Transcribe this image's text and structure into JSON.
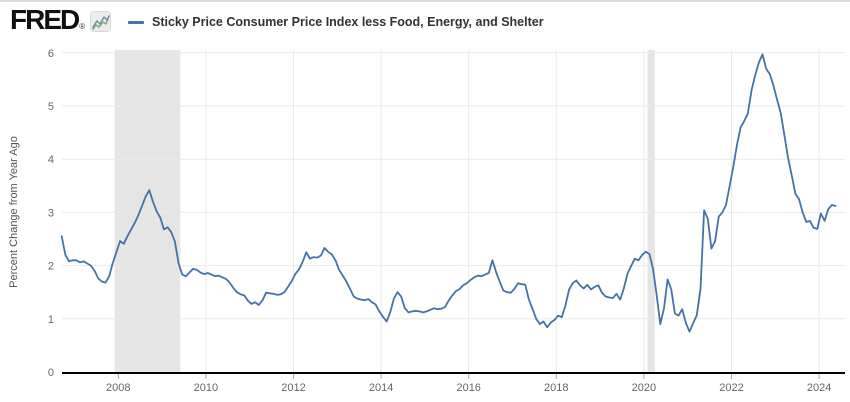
{
  "header": {
    "logo_text": "FRED",
    "logo_registered": "®",
    "legend": {
      "label": "Sticky Price Consumer Price Index less Food, Energy, and Shelter",
      "marker_color": "#4572a7"
    }
  },
  "colors": {
    "line": "#4572a7",
    "recession": "#e5e5e5",
    "grid": "#e9e9e9",
    "axis": "#000000",
    "tick": "#aaaaaa",
    "tick_label": "#666666",
    "axis_title": "#555555",
    "logo_icon_blue": "#6b8fb3",
    "logo_icon_green": "#86a873"
  },
  "chart_data": {
    "type": "line",
    "title": "",
    "ylabel": "Percent Change from Year Ago",
    "xlabel": "",
    "ylim": [
      0,
      6
    ],
    "yticks": [
      0,
      1,
      2,
      3,
      4,
      5,
      6
    ],
    "xticks": [
      2008,
      2010,
      2012,
      2014,
      2016,
      2018,
      2020,
      2022,
      2024
    ],
    "grid": true,
    "legend_position": "top-left",
    "recession_shading": [
      {
        "start": "2007-12",
        "end": "2009-06"
      },
      {
        "start": "2020-02",
        "end": "2020-04"
      }
    ],
    "series": [
      {
        "name": "Sticky Price Consumer Price Index less Food, Energy, and Shelter",
        "color": "#4572a7",
        "points": [
          [
            "2006-09",
            2.55
          ],
          [
            "2006-10",
            2.2
          ],
          [
            "2006-11",
            2.08
          ],
          [
            "2006-12",
            2.1
          ],
          [
            "2007-01",
            2.1
          ],
          [
            "2007-02",
            2.06
          ],
          [
            "2007-03",
            2.08
          ],
          [
            "2007-04",
            2.04
          ],
          [
            "2007-05",
            2.0
          ],
          [
            "2007-06",
            1.9
          ],
          [
            "2007-07",
            1.76
          ],
          [
            "2007-08",
            1.7
          ],
          [
            "2007-09",
            1.68
          ],
          [
            "2007-10",
            1.8
          ],
          [
            "2007-11",
            2.05
          ],
          [
            "2007-12",
            2.26
          ],
          [
            "2008-01",
            2.46
          ],
          [
            "2008-02",
            2.41
          ],
          [
            "2008-03",
            2.55
          ],
          [
            "2008-04",
            2.68
          ],
          [
            "2008-05",
            2.8
          ],
          [
            "2008-06",
            2.95
          ],
          [
            "2008-07",
            3.12
          ],
          [
            "2008-08",
            3.3
          ],
          [
            "2008-09",
            3.42
          ],
          [
            "2008-10",
            3.2
          ],
          [
            "2008-11",
            3.02
          ],
          [
            "2008-12",
            2.9
          ],
          [
            "2009-01",
            2.68
          ],
          [
            "2009-02",
            2.72
          ],
          [
            "2009-03",
            2.63
          ],
          [
            "2009-04",
            2.45
          ],
          [
            "2009-05",
            2.05
          ],
          [
            "2009-06",
            1.83
          ],
          [
            "2009-07",
            1.8
          ],
          [
            "2009-08",
            1.87
          ],
          [
            "2009-09",
            1.94
          ],
          [
            "2009-10",
            1.92
          ],
          [
            "2009-11",
            1.87
          ],
          [
            "2009-12",
            1.84
          ],
          [
            "2010-01",
            1.86
          ],
          [
            "2010-02",
            1.83
          ],
          [
            "2010-03",
            1.8
          ],
          [
            "2010-04",
            1.81
          ],
          [
            "2010-05",
            1.78
          ],
          [
            "2010-06",
            1.75
          ],
          [
            "2010-07",
            1.68
          ],
          [
            "2010-08",
            1.58
          ],
          [
            "2010-09",
            1.5
          ],
          [
            "2010-10",
            1.46
          ],
          [
            "2010-11",
            1.44
          ],
          [
            "2010-12",
            1.34
          ],
          [
            "2011-01",
            1.28
          ],
          [
            "2011-02",
            1.31
          ],
          [
            "2011-03",
            1.26
          ],
          [
            "2011-04",
            1.35
          ],
          [
            "2011-05",
            1.49
          ],
          [
            "2011-06",
            1.48
          ],
          [
            "2011-07",
            1.47
          ],
          [
            "2011-08",
            1.45
          ],
          [
            "2011-09",
            1.46
          ],
          [
            "2011-10",
            1.5
          ],
          [
            "2011-11",
            1.6
          ],
          [
            "2011-12",
            1.71
          ],
          [
            "2012-01",
            1.84
          ],
          [
            "2012-02",
            1.93
          ],
          [
            "2012-03",
            2.07
          ],
          [
            "2012-04",
            2.25
          ],
          [
            "2012-05",
            2.13
          ],
          [
            "2012-06",
            2.16
          ],
          [
            "2012-07",
            2.15
          ],
          [
            "2012-08",
            2.19
          ],
          [
            "2012-09",
            2.33
          ],
          [
            "2012-10",
            2.26
          ],
          [
            "2012-11",
            2.21
          ],
          [
            "2012-12",
            2.1
          ],
          [
            "2013-01",
            1.92
          ],
          [
            "2013-02",
            1.81
          ],
          [
            "2013-03",
            1.7
          ],
          [
            "2013-04",
            1.56
          ],
          [
            "2013-05",
            1.42
          ],
          [
            "2013-06",
            1.38
          ],
          [
            "2013-07",
            1.36
          ],
          [
            "2013-08",
            1.35
          ],
          [
            "2013-09",
            1.37
          ],
          [
            "2013-10",
            1.31
          ],
          [
            "2013-11",
            1.27
          ],
          [
            "2013-12",
            1.14
          ],
          [
            "2014-01",
            1.04
          ],
          [
            "2014-02",
            0.95
          ],
          [
            "2014-03",
            1.12
          ],
          [
            "2014-04",
            1.38
          ],
          [
            "2014-05",
            1.5
          ],
          [
            "2014-06",
            1.42
          ],
          [
            "2014-07",
            1.2
          ],
          [
            "2014-08",
            1.12
          ],
          [
            "2014-09",
            1.14
          ],
          [
            "2014-10",
            1.15
          ],
          [
            "2014-11",
            1.14
          ],
          [
            "2014-12",
            1.12
          ],
          [
            "2015-01",
            1.14
          ],
          [
            "2015-02",
            1.17
          ],
          [
            "2015-03",
            1.2
          ],
          [
            "2015-04",
            1.18
          ],
          [
            "2015-05",
            1.19
          ],
          [
            "2015-06",
            1.22
          ],
          [
            "2015-07",
            1.34
          ],
          [
            "2015-08",
            1.44
          ],
          [
            "2015-09",
            1.52
          ],
          [
            "2015-10",
            1.56
          ],
          [
            "2015-11",
            1.63
          ],
          [
            "2015-12",
            1.67
          ],
          [
            "2016-01",
            1.73
          ],
          [
            "2016-02",
            1.78
          ],
          [
            "2016-03",
            1.81
          ],
          [
            "2016-04",
            1.8
          ],
          [
            "2016-05",
            1.83
          ],
          [
            "2016-06",
            1.86
          ],
          [
            "2016-07",
            2.1
          ],
          [
            "2016-08",
            1.88
          ],
          [
            "2016-09",
            1.7
          ],
          [
            "2016-10",
            1.53
          ],
          [
            "2016-11",
            1.5
          ],
          [
            "2016-12",
            1.49
          ],
          [
            "2017-01",
            1.56
          ],
          [
            "2017-02",
            1.67
          ],
          [
            "2017-03",
            1.65
          ],
          [
            "2017-04",
            1.64
          ],
          [
            "2017-05",
            1.36
          ],
          [
            "2017-06",
            1.18
          ],
          [
            "2017-07",
            1.0
          ],
          [
            "2017-08",
            0.9
          ],
          [
            "2017-09",
            0.95
          ],
          [
            "2017-10",
            0.84
          ],
          [
            "2017-11",
            0.93
          ],
          [
            "2017-12",
            0.98
          ],
          [
            "2018-01",
            1.06
          ],
          [
            "2018-02",
            1.03
          ],
          [
            "2018-03",
            1.25
          ],
          [
            "2018-04",
            1.55
          ],
          [
            "2018-05",
            1.67
          ],
          [
            "2018-06",
            1.72
          ],
          [
            "2018-07",
            1.63
          ],
          [
            "2018-08",
            1.57
          ],
          [
            "2018-09",
            1.64
          ],
          [
            "2018-10",
            1.55
          ],
          [
            "2018-11",
            1.6
          ],
          [
            "2018-12",
            1.63
          ],
          [
            "2019-01",
            1.49
          ],
          [
            "2019-02",
            1.42
          ],
          [
            "2019-03",
            1.4
          ],
          [
            "2019-04",
            1.39
          ],
          [
            "2019-05",
            1.47
          ],
          [
            "2019-06",
            1.36
          ],
          [
            "2019-07",
            1.57
          ],
          [
            "2019-08",
            1.85
          ],
          [
            "2019-09",
            1.99
          ],
          [
            "2019-10",
            2.13
          ],
          [
            "2019-11",
            2.1
          ],
          [
            "2019-12",
            2.2
          ],
          [
            "2020-01",
            2.26
          ],
          [
            "2020-02",
            2.22
          ],
          [
            "2020-03",
            1.94
          ],
          [
            "2020-04",
            1.44
          ],
          [
            "2020-05",
            0.9
          ],
          [
            "2020-06",
            1.2
          ],
          [
            "2020-07",
            1.74
          ],
          [
            "2020-08",
            1.55
          ],
          [
            "2020-09",
            1.1
          ],
          [
            "2020-10",
            1.06
          ],
          [
            "2020-11",
            1.18
          ],
          [
            "2020-12",
            0.92
          ],
          [
            "2021-01",
            0.76
          ],
          [
            "2021-02",
            0.92
          ],
          [
            "2021-03",
            1.07
          ],
          [
            "2021-04",
            1.56
          ],
          [
            "2021-05",
            3.04
          ],
          [
            "2021-06",
            2.88
          ],
          [
            "2021-07",
            2.32
          ],
          [
            "2021-08",
            2.46
          ],
          [
            "2021-09",
            2.92
          ],
          [
            "2021-10",
            3.0
          ],
          [
            "2021-11",
            3.14
          ],
          [
            "2021-12",
            3.5
          ],
          [
            "2022-01",
            3.86
          ],
          [
            "2022-02",
            4.27
          ],
          [
            "2022-03",
            4.6
          ],
          [
            "2022-04",
            4.72
          ],
          [
            "2022-05",
            4.86
          ],
          [
            "2022-06",
            5.3
          ],
          [
            "2022-07",
            5.58
          ],
          [
            "2022-08",
            5.82
          ],
          [
            "2022-09",
            5.97
          ],
          [
            "2022-10",
            5.7
          ],
          [
            "2022-11",
            5.6
          ],
          [
            "2022-12",
            5.38
          ],
          [
            "2023-01",
            5.12
          ],
          [
            "2023-02",
            4.86
          ],
          [
            "2023-03",
            4.45
          ],
          [
            "2023-04",
            4.02
          ],
          [
            "2023-05",
            3.7
          ],
          [
            "2023-06",
            3.35
          ],
          [
            "2023-07",
            3.25
          ],
          [
            "2023-08",
            3.0
          ],
          [
            "2023-09",
            2.82
          ],
          [
            "2023-10",
            2.84
          ],
          [
            "2023-11",
            2.71
          ],
          [
            "2023-12",
            2.69
          ],
          [
            "2024-01",
            2.98
          ],
          [
            "2024-02",
            2.84
          ],
          [
            "2024-03",
            3.06
          ],
          [
            "2024-04",
            3.14
          ],
          [
            "2024-05",
            3.12
          ]
        ]
      }
    ]
  }
}
